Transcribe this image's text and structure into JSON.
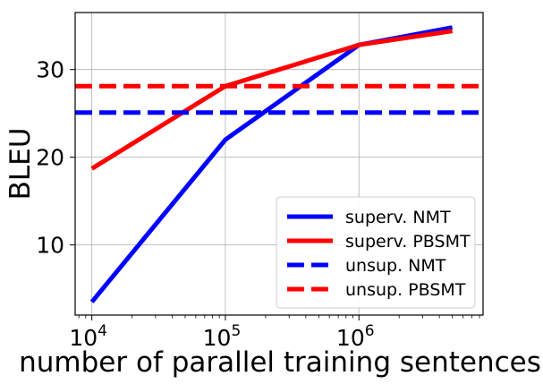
{
  "chart_data": {
    "type": "line",
    "xscale": "log",
    "xlabel": "number of parallel training sentences",
    "ylabel": "BLEU",
    "xlim": [
      7500,
      8500000
    ],
    "ylim": [
      2.0,
      36.5
    ],
    "x_ticks": [
      {
        "value": 10000,
        "base": "10",
        "exp": "4"
      },
      {
        "value": 100000,
        "base": "10",
        "exp": "5"
      },
      {
        "value": 1000000,
        "base": "10",
        "exp": "6"
      }
    ],
    "y_ticks": [
      {
        "value": 10,
        "label": "10"
      },
      {
        "value": 20,
        "label": "20"
      },
      {
        "value": 30,
        "label": "30"
      }
    ],
    "grid": true,
    "legend_position": "lower-right",
    "series": [
      {
        "name": "superv. NMT",
        "color": "#0000ff",
        "style": "solid",
        "x": [
          10000,
          100000,
          1000000,
          5000000
        ],
        "y": [
          3.5,
          22.0,
          32.8,
          34.8
        ]
      },
      {
        "name": "superv. PBSMT",
        "color": "#ff0000",
        "style": "solid",
        "x": [
          10000,
          100000,
          1000000,
          5000000
        ],
        "y": [
          18.7,
          28.1,
          32.8,
          34.4
        ]
      },
      {
        "name": "unsup. NMT",
        "color": "#0000ff",
        "style": "dashed",
        "x": [
          7500,
          8500000
        ],
        "y": [
          25.1,
          25.1
        ]
      },
      {
        "name": "unsup. PBSMT",
        "color": "#ff0000",
        "style": "dashed",
        "x": [
          7500,
          8500000
        ],
        "y": [
          28.1,
          28.1
        ]
      }
    ]
  }
}
